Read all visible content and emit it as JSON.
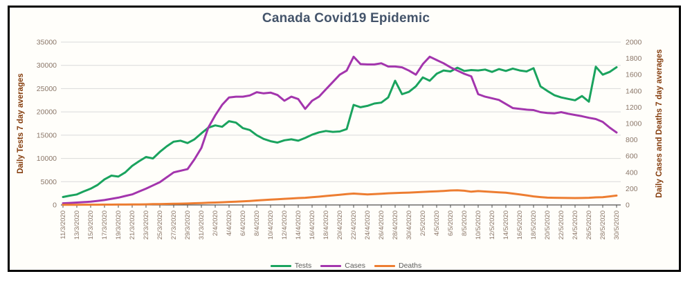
{
  "chart_data": {
    "type": "line",
    "title": "Canada Covid19 Epidemic",
    "grid": true,
    "legend_position": "bottom",
    "x_axis": {
      "dates": [
        "11/3/2020",
        "12/3/2020",
        "13/3/2020",
        "14/3/2020",
        "15/3/2020",
        "16/3/2020",
        "17/3/2020",
        "18/3/2020",
        "19/3/2020",
        "20/3/2020",
        "21/3/2020",
        "22/3/2020",
        "23/3/2020",
        "24/3/2020",
        "25/3/2020",
        "26/3/2020",
        "27/3/2020",
        "28/3/2020",
        "29/3/2020",
        "30/3/2020",
        "31/3/2020",
        "1/4/2020",
        "2/4/2020",
        "3/4/2020",
        "4/4/2020",
        "5/4/2020",
        "6/4/2020",
        "7/4/2020",
        "8/4/2020",
        "9/4/2020",
        "10/4/2020",
        "11/4/2020",
        "12/4/2020",
        "13/4/2020",
        "14/4/2020",
        "15/4/2020",
        "16/4/2020",
        "17/4/2020",
        "18/4/2020",
        "19/4/2020",
        "20/4/2020",
        "21/4/2020",
        "22/4/2020",
        "23/4/2020",
        "24/4/2020",
        "25/4/2020",
        "26/4/2020",
        "27/4/2020",
        "28/4/2020",
        "29/4/2020",
        "30/4/2020",
        "1/5/2020",
        "2/5/2020",
        "3/5/2020",
        "4/5/2020",
        "5/5/2020",
        "6/5/2020",
        "7/5/2020",
        "8/5/2020",
        "9/5/2020",
        "10/5/2020",
        "11/5/2020",
        "12/5/2020",
        "13/5/2020",
        "14/5/2020",
        "15/5/2020",
        "16/5/2020",
        "17/5/2020",
        "18/5/2020",
        "19/5/2020",
        "20/5/2020",
        "21/5/2020",
        "22/5/2020",
        "23/5/2020",
        "24/5/2020",
        "25/5/2020",
        "26/5/2020",
        "27/5/2020",
        "28/5/2020",
        "29/5/2020",
        "30/5/2020"
      ],
      "tick_labels": [
        "11/3/2020",
        "13/3/2020",
        "15/3/2020",
        "17/3/2020",
        "19/3/2020",
        "21/3/2020",
        "23/3/2020",
        "25/3/2020",
        "27/3/2020",
        "29/3/2020",
        "31/3/2020",
        "2/4/2020",
        "4/4/2020",
        "6/4/2020",
        "8/4/2020",
        "10/4/2020",
        "12/4/2020",
        "14/4/2020",
        "16/4/2020",
        "18/4/2020",
        "20/4/2020",
        "22/4/2020",
        "24/4/2020",
        "26/4/2020",
        "28/4/2020",
        "30/4/2020",
        "2/5/2020",
        "4/5/2020",
        "6/5/2020",
        "8/5/2020",
        "10/5/2020",
        "12/5/2020",
        "14/5/2020",
        "16/5/2020",
        "18/5/2020",
        "20/5/2020",
        "22/5/2020",
        "24/5/2020",
        "26/5/2020",
        "28/5/2020",
        "30/5/2020"
      ]
    },
    "y_left": {
      "title": "Daily Tests 7 day averages",
      "min": 0,
      "max": 35000,
      "ticks": [
        0,
        5000,
        10000,
        15000,
        20000,
        25000,
        30000,
        35000
      ]
    },
    "y_right": {
      "title": "Daily Cases and Deaths 7 day averages",
      "min": 0,
      "max": 2000,
      "ticks": [
        0,
        200,
        400,
        600,
        800,
        1000,
        1200,
        1400,
        1600,
        1800,
        2000
      ]
    },
    "series": [
      {
        "name": "Tests",
        "axis": "left",
        "color": "#1AA35E",
        "values": [
          1700,
          2000,
          2250,
          2900,
          3500,
          4300,
          5500,
          6300,
          6100,
          7000,
          8400,
          9400,
          10300,
          10000,
          11400,
          12600,
          13600,
          13800,
          13300,
          14100,
          15400,
          16600,
          17100,
          16800,
          18000,
          17700,
          16500,
          16100,
          15000,
          14200,
          13700,
          13400,
          13900,
          14100,
          13800,
          14400,
          15100,
          15600,
          15900,
          15700,
          15800,
          16300,
          21500,
          21000,
          21300,
          21800,
          22000,
          23100,
          26700,
          23800,
          24300,
          25500,
          27400,
          26700,
          28200,
          28900,
          28700,
          29500,
          28800,
          29000,
          28900,
          29100,
          28600,
          29200,
          28800,
          29300,
          28900,
          28700,
          29400,
          25500,
          24500,
          23600,
          23100,
          22800,
          22500,
          23400,
          22200,
          29700,
          28000,
          28600,
          29600
        ]
      },
      {
        "name": "Cases",
        "axis": "right",
        "color": "#A335AD",
        "values": [
          20,
          25,
          30,
          35,
          40,
          50,
          60,
          75,
          90,
          110,
          130,
          165,
          200,
          240,
          280,
          340,
          400,
          420,
          440,
          560,
          700,
          950,
          1100,
          1230,
          1320,
          1330,
          1330,
          1345,
          1385,
          1370,
          1380,
          1350,
          1280,
          1330,
          1300,
          1180,
          1280,
          1330,
          1420,
          1510,
          1600,
          1650,
          1820,
          1730,
          1725,
          1725,
          1740,
          1700,
          1700,
          1690,
          1650,
          1600,
          1730,
          1820,
          1780,
          1740,
          1690,
          1650,
          1610,
          1580,
          1360,
          1330,
          1310,
          1290,
          1240,
          1190,
          1180,
          1170,
          1165,
          1140,
          1130,
          1125,
          1140,
          1120,
          1105,
          1090,
          1070,
          1055,
          1020,
          950,
          890
        ]
      },
      {
        "name": "Deaths",
        "axis": "right",
        "color": "#ED7D31",
        "values": [
          2,
          2,
          2,
          3,
          3,
          3,
          4,
          4,
          5,
          5,
          6,
          7,
          8,
          10,
          11,
          13,
          14,
          16,
          18,
          21,
          24,
          27,
          30,
          33,
          37,
          40,
          44,
          49,
          55,
          60,
          65,
          70,
          75,
          80,
          85,
          88,
          95,
          102,
          110,
          118,
          125,
          133,
          140,
          135,
          130,
          133,
          138,
          143,
          146,
          149,
          152,
          156,
          160,
          164,
          168,
          172,
          178,
          180,
          175,
          163,
          170,
          165,
          160,
          155,
          150,
          140,
          130,
          118,
          105,
          97,
          90,
          88,
          87,
          86,
          85,
          86,
          88,
          93,
          95,
          105,
          115
        ]
      }
    ]
  },
  "colors": {
    "title": "#44546A",
    "axis_title": "#843C0C",
    "tick_label": "#8a7668",
    "gridline": "#D9D9D9",
    "axis_line": "#4d4d4d",
    "legend_text": "#595959",
    "frame_border": "#000000",
    "background": "#FFFEFA"
  }
}
